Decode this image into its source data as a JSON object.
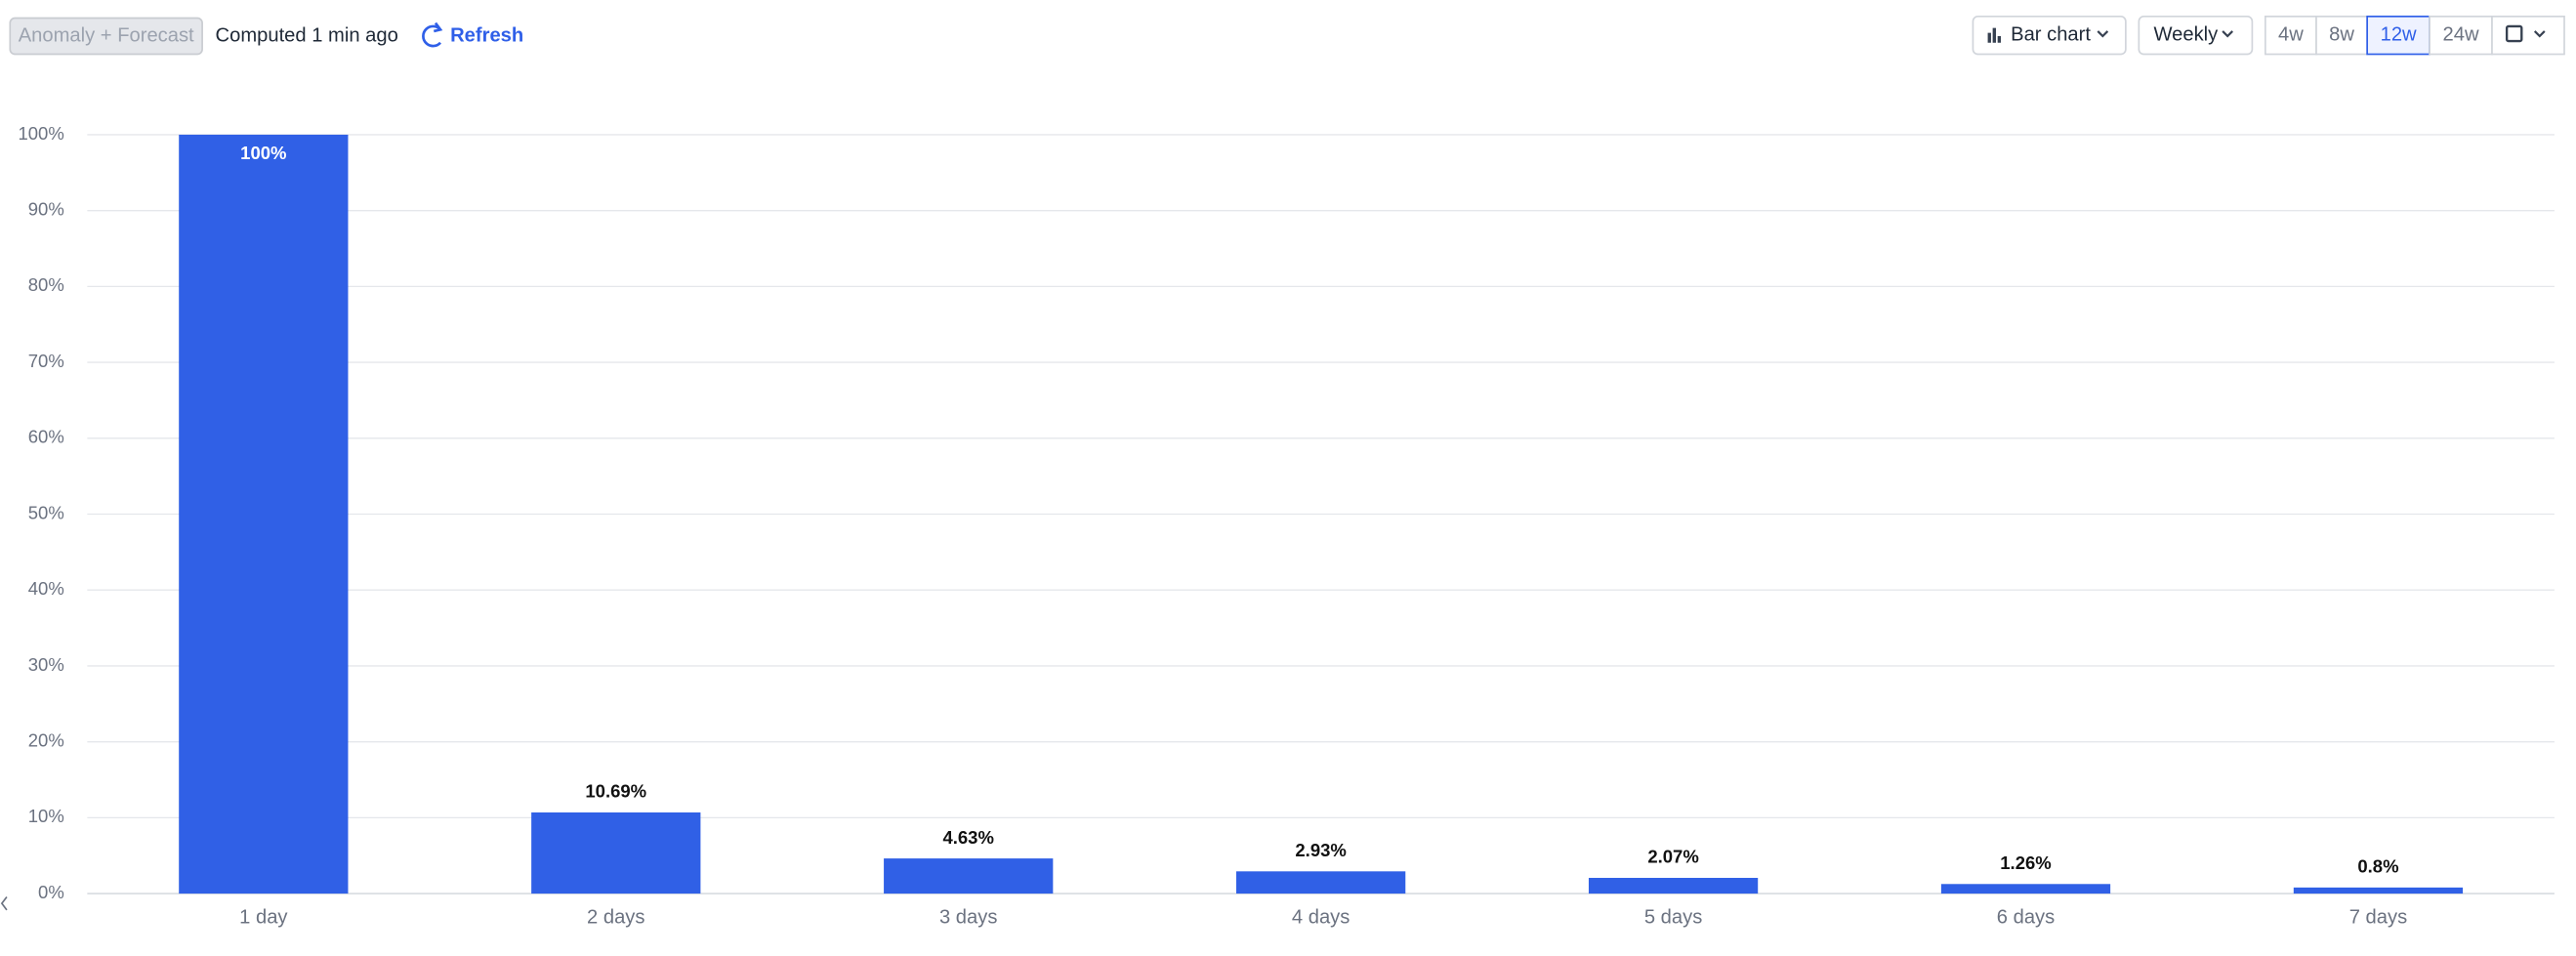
{
  "toolbar": {
    "anomaly": "Anomaly + Forecast",
    "computed": "Computed 1 min ago",
    "refresh": "Refresh",
    "chart_type": "Bar chart",
    "interval": "Weekly",
    "ranges": [
      "4w",
      "8w",
      "12w",
      "24w"
    ],
    "selected_range": "12w"
  },
  "chart_data": {
    "type": "bar",
    "categories": [
      "1 day",
      "2 days",
      "3 days",
      "4 days",
      "5 days",
      "6 days",
      "7 days"
    ],
    "values": [
      100,
      10.69,
      4.63,
      2.93,
      2.07,
      1.26,
      0.8
    ],
    "value_labels": [
      "100%",
      "10.69%",
      "4.63%",
      "2.93%",
      "2.07%",
      "1.26%",
      "0.8%"
    ],
    "color": "#3060e6",
    "ylim": [
      0,
      100
    ],
    "yticks": [
      {
        "value": 0,
        "label": "0%"
      },
      {
        "value": 10,
        "label": "10%"
      },
      {
        "value": 20,
        "label": "20%"
      },
      {
        "value": 30,
        "label": "30%"
      },
      {
        "value": 40,
        "label": "40%"
      },
      {
        "value": 50,
        "label": "50%"
      },
      {
        "value": 60,
        "label": "60%"
      },
      {
        "value": 70,
        "label": "70%"
      },
      {
        "value": 80,
        "label": "80%"
      },
      {
        "value": 90,
        "label": "90%"
      },
      {
        "value": 100,
        "label": "100%"
      }
    ],
    "grid": true
  }
}
